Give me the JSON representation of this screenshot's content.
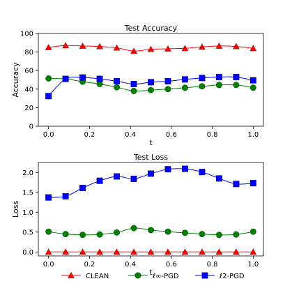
{
  "colors": {
    "clean": "#ff0000",
    "linf": "#008000",
    "l2": "#0000ff"
  },
  "legend": {
    "placement": "bottom-center",
    "entries": [
      {
        "key": "clean",
        "label": "CLEAN",
        "marker": "triangle"
      },
      {
        "key": "linf",
        "label": "ℓ∞-PGD",
        "marker": "circle"
      },
      {
        "key": "l2",
        "label": "ℓ2-PGD",
        "marker": "square"
      }
    ]
  },
  "chart_data": [
    {
      "type": "line",
      "title": "Test Accuracy",
      "xlabel": "t",
      "ylabel": "Accuracy",
      "xlim": [
        -0.05,
        1.05
      ],
      "ylim": [
        0,
        100
      ],
      "xticks": [
        0.0,
        0.2,
        0.4,
        0.6,
        0.8,
        1.0
      ],
      "xtick_labels": [
        "0.0",
        "0.2",
        "0.4",
        "0.6",
        "0.8",
        "1.0"
      ],
      "yticks": [
        0,
        20,
        40,
        60,
        80,
        100
      ],
      "ytick_labels": [
        "0",
        "20",
        "40",
        "60",
        "80",
        "100"
      ],
      "grid": false,
      "x": [
        0.0,
        0.0833,
        0.1667,
        0.25,
        0.3333,
        0.4167,
        0.5,
        0.5833,
        0.6667,
        0.75,
        0.8333,
        0.9167,
        1.0
      ],
      "series": [
        {
          "key": "clean",
          "name": "CLEAN",
          "marker": "triangle",
          "values": [
            85,
            87,
            86.5,
            86,
            84.5,
            81,
            83,
            83.5,
            84,
            85.5,
            86.5,
            86,
            84
          ]
        },
        {
          "key": "linf",
          "name": "ℓ∞-PGD",
          "marker": "circle",
          "values": [
            51.5,
            51,
            48,
            45.5,
            42,
            38,
            39,
            40,
            41.5,
            43,
            44.5,
            44.5,
            41.5
          ]
        },
        {
          "key": "l2",
          "name": "ℓ2-PGD",
          "marker": "square",
          "values": [
            32.5,
            51,
            52.5,
            51,
            48.5,
            45.5,
            47.5,
            48.5,
            50.5,
            52,
            53,
            53,
            49.5
          ]
        }
      ]
    },
    {
      "type": "line",
      "title": "Test Loss",
      "xlabel": "t",
      "ylabel": "Loss",
      "xlim": [
        -0.05,
        1.05
      ],
      "ylim": [
        -0.1,
        2.25
      ],
      "xticks": [
        0.0,
        0.2,
        0.4,
        0.6,
        0.8,
        1.0
      ],
      "xtick_labels": [
        "0.0",
        "0.2",
        "0.4",
        "0.6",
        "0.8",
        "1.0"
      ],
      "yticks": [
        0.0,
        0.5,
        1.0,
        1.5,
        2.0
      ],
      "ytick_labels": [
        "0.0",
        "0.5",
        "1.0",
        "1.5",
        "2.0"
      ],
      "grid": false,
      "x": [
        0.0,
        0.0833,
        0.1667,
        0.25,
        0.3333,
        0.4167,
        0.5,
        0.5833,
        0.6667,
        0.75,
        0.8333,
        0.9167,
        1.0
      ],
      "series": [
        {
          "key": "clean",
          "name": "CLEAN",
          "marker": "triangle",
          "values": [
            0.0,
            0.0,
            0.0,
            0.0,
            0.0,
            0.0,
            0.0,
            0.0,
            0.0,
            0.0,
            0.0,
            0.0,
            0.0
          ]
        },
        {
          "key": "linf",
          "name": "ℓ∞-PGD",
          "marker": "circle",
          "values": [
            0.51,
            0.45,
            0.43,
            0.44,
            0.49,
            0.6,
            0.55,
            0.51,
            0.48,
            0.45,
            0.43,
            0.44,
            0.51
          ]
        },
        {
          "key": "l2",
          "name": "ℓ2-PGD",
          "marker": "square",
          "values": [
            1.37,
            1.4,
            1.61,
            1.79,
            1.9,
            1.84,
            1.97,
            2.08,
            2.09,
            2.01,
            1.85,
            1.71,
            1.73
          ]
        }
      ]
    }
  ]
}
